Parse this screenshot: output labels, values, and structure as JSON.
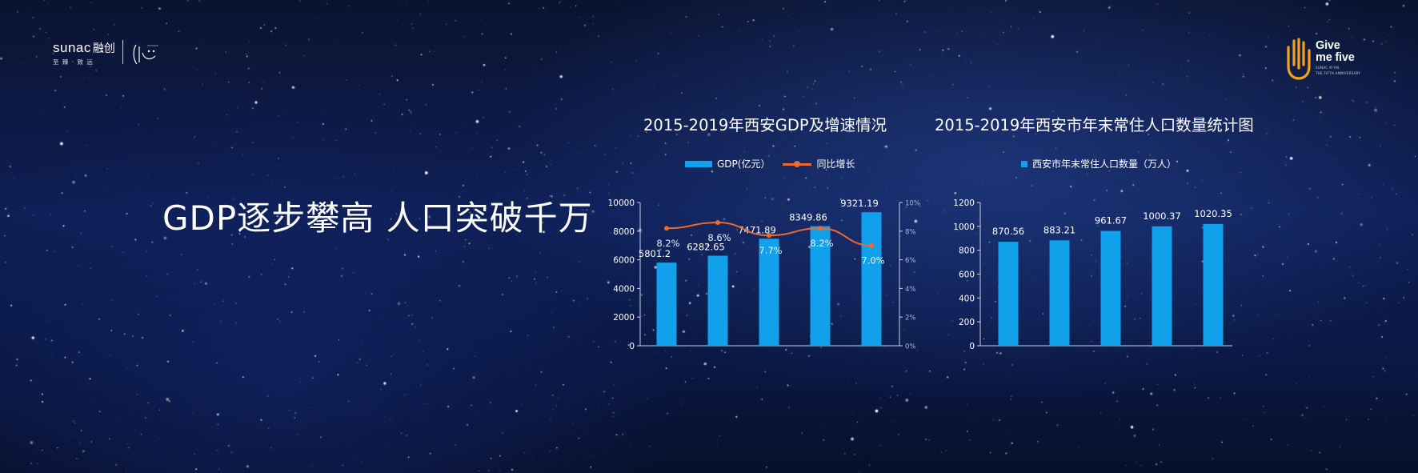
{
  "brand_left": {
    "name": "sunac",
    "name_cn": "融创",
    "slogan": "至 臻 · 致 远"
  },
  "brand_right": {
    "line1": "Give",
    "line2": "me five",
    "small1": "SUNAC XI'AN",
    "small2": "THE FIFTH ANNIVERSARY"
  },
  "headline": "GDP逐步攀高 人口突破千万",
  "colors": {
    "bar": "#11a0ec",
    "line": "#ee6a2c",
    "axis": "#c9d2e6"
  },
  "chart_data": [
    {
      "type": "bar",
      "title": "2015-2019年西安GDP及增速情况",
      "categories": [
        "",
        "",
        "",
        "",
        ""
      ],
      "series": [
        {
          "name": "GDP(亿元）",
          "type": "bar",
          "values": [
            5801.2,
            6282.65,
            7471.89,
            8349.86,
            9321.19
          ],
          "labels": [
            "5801.2",
            "6282.65",
            "7471.89",
            "8349.86",
            "9321.19"
          ]
        },
        {
          "name": "同比增长",
          "type": "line",
          "axis": "right",
          "values": [
            8.2,
            8.6,
            7.7,
            8.2,
            7.0
          ],
          "labels": [
            "8.2%",
            "8.6%",
            "7.7%",
            "8.2%",
            "7.0%"
          ]
        }
      ],
      "ylim": [
        0,
        10000
      ],
      "yticks": [
        "0",
        "2000",
        "4000",
        "6000",
        "8000",
        "10000"
      ],
      "y2lim": [
        0,
        10
      ],
      "y2ticks": [
        "0%",
        "2%",
        "4%",
        "6%",
        "8%",
        "10%"
      ],
      "legend_position": "top"
    },
    {
      "type": "bar",
      "title": "2015-2019年西安市年末常住人口数量统计图",
      "categories": [
        "",
        "",
        "",
        "",
        ""
      ],
      "series": [
        {
          "name": "西安市年末常住人口数量（万人）",
          "values": [
            870.56,
            883.21,
            961.67,
            1000.37,
            1020.35
          ],
          "labels": [
            "870.56",
            "883.21",
            "961.67",
            "1000.37",
            "1020.35"
          ]
        }
      ],
      "ylim": [
        0,
        1200
      ],
      "yticks": [
        "0",
        "200",
        "400",
        "600",
        "800",
        "1000",
        "1200"
      ],
      "legend_position": "top"
    }
  ]
}
